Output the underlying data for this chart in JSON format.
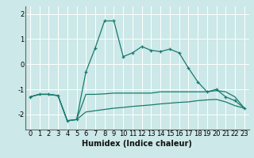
{
  "xlabel": "Humidex (Indice chaleur)",
  "bg_color": "#cce8e8",
  "line_color": "#1a7a6e",
  "grid_color": "#ffffff",
  "x": [
    0,
    1,
    2,
    3,
    4,
    5,
    6,
    7,
    8,
    9,
    10,
    11,
    12,
    13,
    14,
    15,
    16,
    17,
    18,
    19,
    20,
    21,
    22,
    23
  ],
  "y_main": [
    -1.3,
    -1.2,
    -1.2,
    -1.25,
    -2.25,
    -2.2,
    -0.3,
    0.65,
    1.72,
    1.72,
    0.3,
    0.45,
    0.7,
    0.55,
    0.5,
    0.6,
    0.45,
    -0.15,
    -0.7,
    -1.1,
    -1.0,
    -1.3,
    -1.45,
    -1.75
  ],
  "y_line2": [
    -1.3,
    -1.2,
    -1.2,
    -1.25,
    -2.25,
    -2.2,
    -1.2,
    -1.2,
    -1.18,
    -1.15,
    -1.15,
    -1.15,
    -1.15,
    -1.15,
    -1.1,
    -1.1,
    -1.1,
    -1.1,
    -1.1,
    -1.1,
    -1.05,
    -1.1,
    -1.3,
    -1.75
  ],
  "y_line3": [
    -1.3,
    -1.2,
    -1.2,
    -1.25,
    -2.25,
    -2.2,
    -1.9,
    -1.85,
    -1.8,
    -1.75,
    -1.72,
    -1.68,
    -1.65,
    -1.62,
    -1.58,
    -1.55,
    -1.52,
    -1.5,
    -1.45,
    -1.42,
    -1.4,
    -1.5,
    -1.65,
    -1.75
  ],
  "ylim": [
    -2.6,
    2.3
  ],
  "yticks": [
    -2,
    -1,
    0,
    1,
    2
  ],
  "xticks": [
    0,
    1,
    2,
    3,
    4,
    5,
    6,
    7,
    8,
    9,
    10,
    11,
    12,
    13,
    14,
    15,
    16,
    17,
    18,
    19,
    20,
    21,
    22,
    23
  ],
  "xlabel_fontsize": 7,
  "tick_fontsize": 6,
  "figsize": [
    3.2,
    2.0
  ],
  "dpi": 100
}
